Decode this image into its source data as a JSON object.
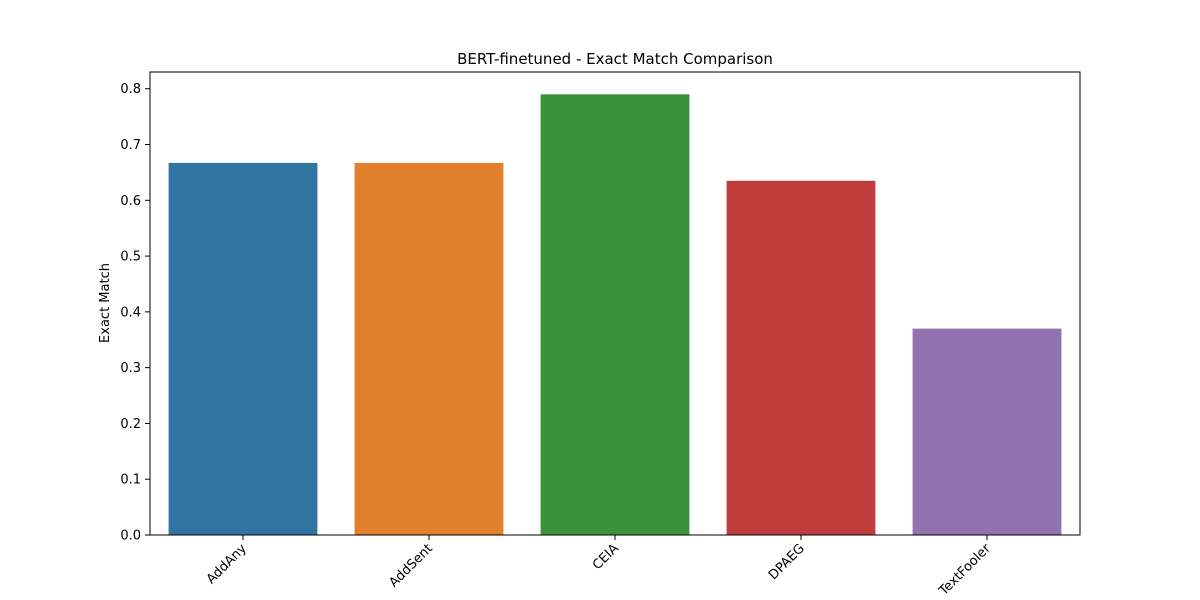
{
  "chart_data": {
    "type": "bar",
    "title": "BERT-finetuned - Exact Match Comparison",
    "xlabel": "",
    "ylabel": "Exact Match",
    "categories": [
      "AddAny",
      "AddSent",
      "CEIA",
      "DPAEG",
      "TextFooler"
    ],
    "values": [
      0.667,
      0.667,
      0.79,
      0.635,
      0.37
    ],
    "colors": [
      "#3274a1",
      "#e1812c",
      "#3a923a",
      "#c03d3e",
      "#9372b2"
    ],
    "ylim": [
      0,
      0.83
    ],
    "yticks": [
      0.0,
      0.1,
      0.2,
      0.3,
      0.4,
      0.5,
      0.6,
      0.7,
      0.8
    ],
    "ytick_labels": [
      "0.0",
      "0.1",
      "0.2",
      "0.3",
      "0.4",
      "0.5",
      "0.6",
      "0.7",
      "0.8"
    ],
    "grid": false,
    "legend": "none"
  }
}
